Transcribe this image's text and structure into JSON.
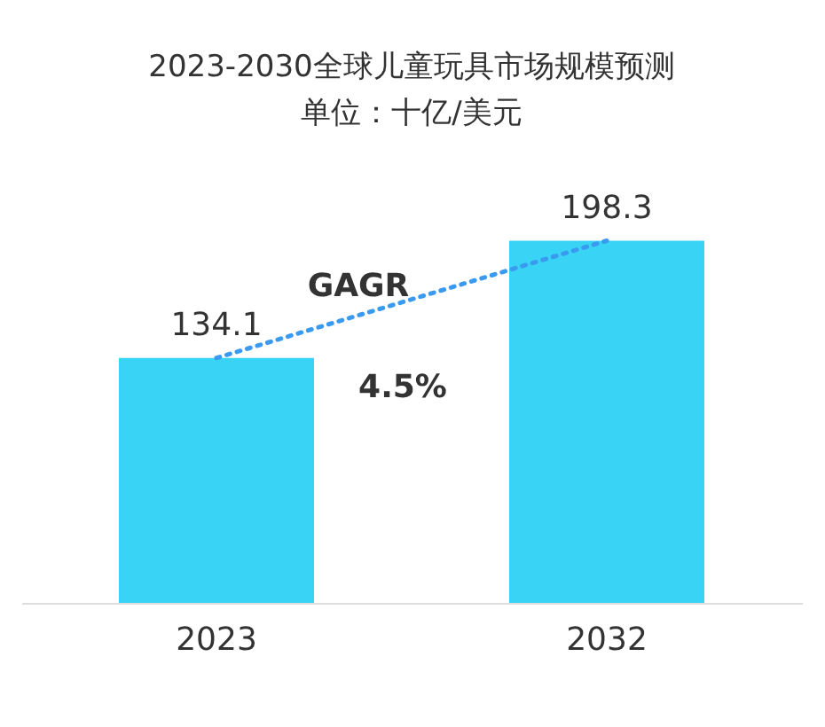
{
  "chart_data": {
    "type": "bar",
    "title": [
      "2023-2030全球儿童玩具市场规模预测",
      "单位：十亿/美元"
    ],
    "categories": [
      "2023",
      "2032"
    ],
    "series": [
      {
        "color": "#38d3f5",
        "values": [
          134.1,
          198.3
        ],
        "value_labels": [
          "134.1",
          "198.3"
        ]
      },
      {
        "type": "line",
        "color": "#3a9af0",
        "line_style": "dotted",
        "values": [
          134.1,
          198.3
        ]
      }
    ],
    "grid": false,
    "annotations": [
      "GAGR",
      "4.5%"
    ]
  }
}
